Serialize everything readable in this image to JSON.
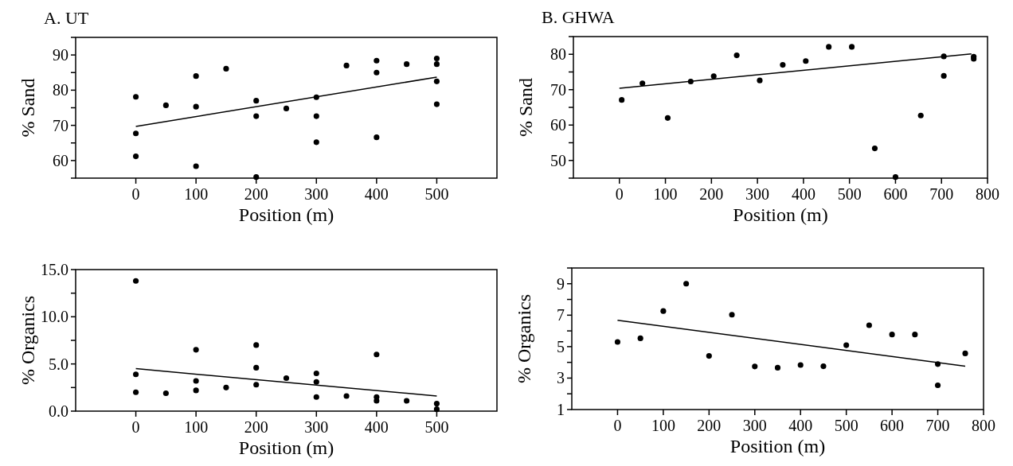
{
  "chart_data": [
    {
      "type": "scatter",
      "title": "A. UT",
      "xlabel": "Position (m)",
      "ylabel": "% Sand",
      "xlim": [
        -100,
        600
      ],
      "xticks": [
        0,
        100,
        200,
        300,
        400,
        500
      ],
      "ylim": [
        55,
        95
      ],
      "yticks": [
        {
          "value": 55,
          "label": null
        },
        60,
        {
          "value": 65,
          "label": null
        },
        70,
        {
          "value": 75,
          "label": null
        },
        80,
        {
          "value": 85,
          "label": null
        },
        90,
        {
          "value": 95,
          "label": null
        }
      ],
      "marker": "circle",
      "series": [
        {
          "color": "#000000",
          "x": [
            0,
            0,
            0,
            50,
            100,
            100,
            100,
            150,
            200,
            200,
            200,
            250,
            300,
            300,
            300,
            350,
            400,
            400,
            400,
            450,
            500,
            500,
            500,
            500
          ],
          "values": [
            78.1,
            67.7,
            61.2,
            75.7,
            84,
            75.3,
            58.4,
            86.1,
            77,
            72.6,
            55.3,
            74.8,
            78,
            72.6,
            65.2,
            87,
            88.4,
            85,
            66.6,
            87.4,
            89,
            87.4,
            82.5,
            76
          ]
        },
        {
          "type": "line",
          "marker": "none",
          "color": "#000000",
          "x": [
            0,
            500
          ],
          "values": [
            69.7,
            83.7
          ]
        }
      ]
    },
    {
      "type": "scatter",
      "title": "B. GHWA",
      "xlabel": "Position (m)",
      "ylabel": "% Sand",
      "xlim": [
        -100,
        800
      ],
      "xticks": [
        0,
        100,
        200,
        300,
        400,
        500,
        600,
        700,
        800
      ],
      "ylim": [
        45,
        85
      ],
      "yticks": [
        {
          "value": 45,
          "label": null
        },
        50,
        {
          "value": 55,
          "label": null
        },
        60,
        {
          "value": 65,
          "label": null
        },
        70,
        {
          "value": 75,
          "label": null
        },
        80,
        {
          "value": 85,
          "label": null
        }
      ],
      "marker": "circle",
      "series": [
        {
          "color": "#000000",
          "x": [
            5,
            50,
            105,
            155,
            205,
            255,
            305,
            355,
            405,
            455,
            505,
            555,
            600,
            655,
            705,
            705,
            770,
            770
          ],
          "values": [
            67.1,
            71.8,
            62,
            72.3,
            73.8,
            79.7,
            72.6,
            77,
            78.1,
            82.1,
            82.1,
            53.4,
            45.3,
            62.7,
            79.4,
            73.9,
            79.3,
            78.7
          ]
        },
        {
          "type": "line",
          "marker": "none",
          "color": "#000000",
          "x": [
            0,
            765
          ],
          "values": [
            70.4,
            80.1
          ]
        }
      ]
    },
    {
      "type": "scatter",
      "xlabel": "Position (m)",
      "ylabel": "% Organics",
      "xlim": [
        -100,
        600
      ],
      "xticks": [
        0,
        100,
        200,
        300,
        400,
        500
      ],
      "ylim": [
        0,
        15
      ],
      "yticks": [
        {
          "value": 0,
          "label": "0.0"
        },
        {
          "value": 2.5,
          "label": null
        },
        {
          "value": 5,
          "label": "5.0"
        },
        {
          "value": 7.5,
          "label": null
        },
        {
          "value": 10,
          "label": "10.0"
        },
        {
          "value": 12.5,
          "label": null
        },
        {
          "value": 15,
          "label": "15.0"
        }
      ],
      "marker": "circle",
      "series": [
        {
          "color": "#000000",
          "x": [
            0,
            0,
            0,
            50,
            100,
            100,
            100,
            150,
            200,
            200,
            200,
            250,
            300,
            300,
            300,
            350,
            400,
            400,
            400,
            450,
            500,
            500
          ],
          "values": [
            13.8,
            3.9,
            2,
            1.9,
            6.5,
            3.2,
            2.2,
            2.5,
            7,
            4.6,
            2.8,
            3.5,
            4,
            3.1,
            1.5,
            1.6,
            6,
            1.5,
            1.1,
            1.1,
            0.8,
            0.2
          ]
        },
        {
          "type": "line",
          "marker": "none",
          "color": "#000000",
          "x": [
            0,
            500
          ],
          "values": [
            4.5,
            1.6
          ]
        }
      ]
    },
    {
      "type": "scatter",
      "xlabel": "Position (m)",
      "ylabel": "% Organics",
      "xlim": [
        -100,
        800
      ],
      "xticks": [
        0,
        100,
        200,
        300,
        400,
        500,
        600,
        700,
        800
      ],
      "ylim": [
        1,
        10
      ],
      "yticks": [
        1,
        {
          "value": 2,
          "label": null
        },
        3,
        {
          "value": 4,
          "label": null
        },
        5,
        {
          "value": 6,
          "label": null
        },
        7,
        {
          "value": 8,
          "label": null
        },
        9,
        {
          "value": 10,
          "label": null
        }
      ],
      "marker": "circle",
      "series": [
        {
          "color": "#000000",
          "x": [
            0,
            50,
            100,
            150,
            200,
            250,
            300,
            350,
            400,
            450,
            500,
            550,
            600,
            650,
            700,
            700,
            760
          ],
          "values": [
            5.3,
            5.53,
            7.26,
            9,
            4.41,
            7.03,
            3.74,
            3.66,
            3.83,
            3.75,
            5.09,
            6.36,
            5.77,
            5.77,
            3.89,
            2.54,
            4.57
          ]
        },
        {
          "type": "line",
          "marker": "none",
          "color": "#000000",
          "x": [
            0,
            760
          ],
          "values": [
            6.68,
            3.76
          ]
        }
      ]
    }
  ]
}
